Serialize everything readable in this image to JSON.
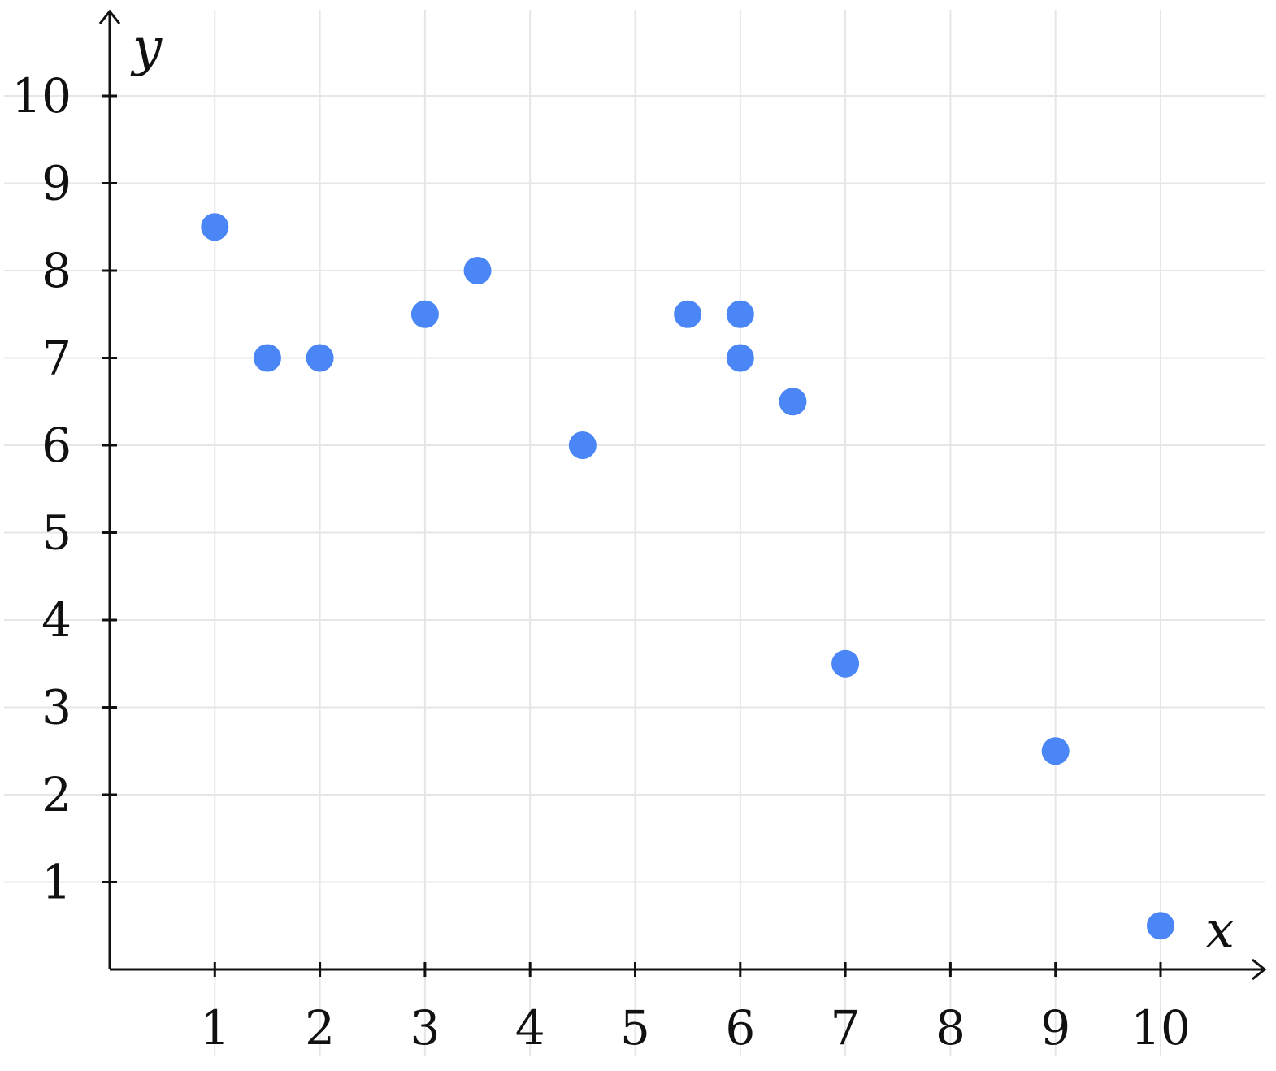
{
  "chart_data": {
    "type": "scatter",
    "title": "",
    "xlabel": "x",
    "ylabel": "y",
    "xlim": [
      0,
      11
    ],
    "ylim": [
      0,
      10.8
    ],
    "x_ticks": [
      1,
      2,
      3,
      4,
      5,
      6,
      7,
      8,
      9,
      10
    ],
    "y_ticks": [
      1,
      2,
      3,
      4,
      5,
      6,
      7,
      8,
      9,
      10
    ],
    "grid": true,
    "legend": "none",
    "marker_color": "#4a86f5",
    "points": [
      {
        "x": 1,
        "y": 8.5
      },
      {
        "x": 1.5,
        "y": 7
      },
      {
        "x": 2,
        "y": 7
      },
      {
        "x": 3,
        "y": 7.5
      },
      {
        "x": 3.5,
        "y": 8
      },
      {
        "x": 4.5,
        "y": 6
      },
      {
        "x": 5.5,
        "y": 7.5
      },
      {
        "x": 6,
        "y": 7.5
      },
      {
        "x": 6,
        "y": 7
      },
      {
        "x": 6.5,
        "y": 6.5
      },
      {
        "x": 7,
        "y": 3.5
      },
      {
        "x": 9,
        "y": 2.5
      },
      {
        "x": 10,
        "y": 0.5
      }
    ]
  }
}
